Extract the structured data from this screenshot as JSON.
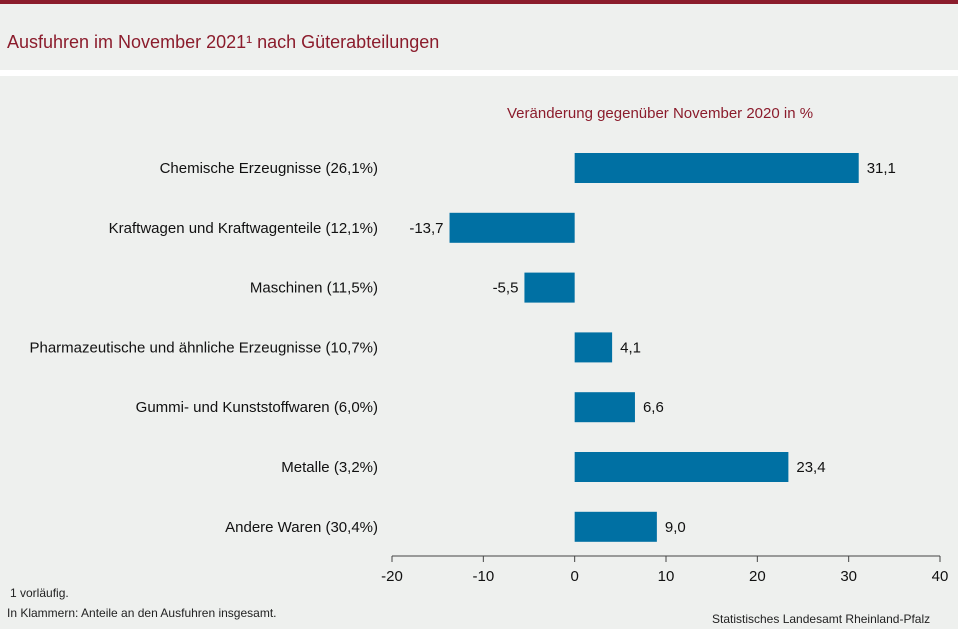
{
  "header": {
    "title": "Ausfuhren im November 2021¹ nach Güterabteilungen"
  },
  "chart_data": {
    "type": "bar",
    "orientation": "horizontal",
    "subtitle": "Veränderung gegenüber November 2020 in %",
    "categories": [
      "Chemische Erzeugnisse (26,1%)",
      "Kraftwagen und Kraftwagenteile (12,1%)",
      "Maschinen (11,5%)",
      "Pharmazeutische und ähnliche Erzeugnisse (10,7%)",
      "Gummi- und Kunststoffwaren (6,0%)",
      "Metalle (3,2%)",
      "Andere Waren (30,4%)"
    ],
    "values": [
      31.1,
      -13.7,
      -5.5,
      4.1,
      6.6,
      23.4,
      9.0
    ],
    "value_labels": [
      "31,1",
      "-13,7",
      "-5,5",
      "4,1",
      "6,6",
      "23,4",
      "9,0"
    ],
    "xlim": [
      -20,
      40
    ],
    "xticks": [
      -20,
      -10,
      0,
      10,
      20,
      30,
      40
    ],
    "xtick_labels": [
      "-20",
      "-10",
      "0",
      "10",
      "20",
      "30",
      "40"
    ],
    "grid": false,
    "bar_color": "#0070a3"
  },
  "footnotes": {
    "note1": "1 vorläufig.",
    "note2": "In Klammern: Anteile an den Ausfuhren insgesamt."
  },
  "source": "Statistisches Landesamt Rheinland-Pfalz"
}
